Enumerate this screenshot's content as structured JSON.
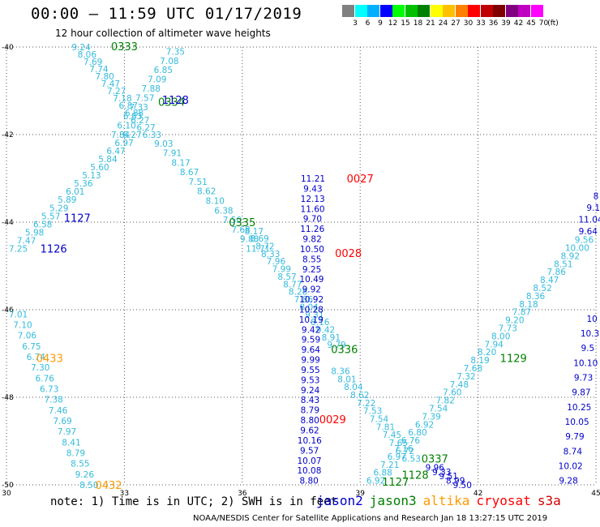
{
  "title": "00:00 – 11:59 UTC 01/17/2019",
  "subtitle": "12 hour collection of altimeter wave heights",
  "legend": {
    "unit": "(ft)",
    "bins": [
      {
        "color": "#808080",
        "label": "3"
      },
      {
        "color": "#00ffff",
        "label": "6"
      },
      {
        "color": "#00b0ff",
        "label": "9"
      },
      {
        "color": "#0000ff",
        "label": "12"
      },
      {
        "color": "#00ff00",
        "label": "15"
      },
      {
        "color": "#00c000",
        "label": "18"
      },
      {
        "color": "#008000",
        "label": "21"
      },
      {
        "color": "#ffff00",
        "label": "24"
      },
      {
        "color": "#ffc000",
        "label": "27"
      },
      {
        "color": "#ff8000",
        "label": "30"
      },
      {
        "color": "#ff0000",
        "label": "33"
      },
      {
        "color": "#c00000",
        "label": "36"
      },
      {
        "color": "#800000",
        "label": "39"
      },
      {
        "color": "#800080",
        "label": "42"
      },
      {
        "color": "#c000c0",
        "label": "45"
      },
      {
        "color": "#ff00ff",
        "label": "70"
      }
    ]
  },
  "axes": {
    "lon_ticks": [
      "30",
      "33",
      "36",
      "39",
      "42",
      "45"
    ],
    "lat_ticks": [
      "-40",
      "-42",
      "-44",
      "-46",
      "-48",
      "-50"
    ]
  },
  "colors": {
    "jason2": "#0000cc",
    "jason3": "#008000",
    "altika": "#ff9900",
    "cryosat": "#ff0000",
    "s3a": "#cc0000",
    "light": "#33bbdd",
    "grid": "#555555"
  },
  "tracks": [
    {
      "sat": "jason2",
      "color": "#33bbdd",
      "lon0": 31.9,
      "lat0": -40.0,
      "lon1": 33.7,
      "lat1": -42.0,
      "values": [
        "9.24",
        "8.06",
        "7.69",
        "7.74",
        "7.80",
        "7.47",
        "7.27",
        "7.18",
        "6.87",
        "6.88",
        "6.27",
        "6.27",
        "6.33"
      ]
    },
    {
      "sat": "jason2",
      "color": "#33bbdd",
      "lon0": 34.3,
      "lat0": -40.1,
      "lon1": 32.9,
      "lat1": -42.0,
      "values": [
        "7.35",
        "7.08",
        "6.85",
        "7.09",
        "7.88",
        "7.57",
        "7.33",
        "6.83",
        "6.10",
        "7.84"
      ]
    },
    {
      "sat": "jason2",
      "color": "#33bbdd",
      "lon0": 33.2,
      "lat0": -42.0,
      "lon1": 30.3,
      "lat1": -44.6,
      "values": [
        "6.27",
        "6.97",
        "6.47",
        "5.84",
        "5.60",
        "5.13",
        "5.36",
        "6.01",
        "5.89",
        "5.29",
        "5.57",
        "6.58",
        "5.98",
        "7.47",
        "7.25"
      ]
    },
    {
      "sat": "jason2",
      "color": "#33bbdd",
      "lon0": 34.0,
      "lat0": -42.2,
      "lon1": 36.4,
      "lat1": -44.6,
      "values": [
        "9.03",
        "7.91",
        "8.17",
        "8.67",
        "7.51",
        "8.62",
        "8.10",
        "6.38",
        "7.50",
        "7.68",
        "9.88",
        "11.71"
      ]
    },
    {
      "sat": "jason2",
      "color": "#33bbdd",
      "lon0": 36.3,
      "lat0": -44.2,
      "lon1": 38.4,
      "lat1": -46.8,
      "values": [
        "8.17",
        "8.69",
        "8.72",
        "8.33",
        "7.96",
        "7.99",
        "8.57",
        "8.77",
        "8.28",
        "7.86",
        "8.04",
        "9.31",
        "8.16",
        "9.42",
        "8.91",
        "9.79"
      ]
    },
    {
      "sat": "jason2",
      "color": "#33bbdd",
      "lon0": 38.5,
      "lat0": -47.4,
      "lon1": 40.3,
      "lat1": -49.4,
      "values": [
        "8.36",
        "8.01",
        "8.04",
        "8.62",
        "7.22",
        "7.53",
        "7.54",
        "7.81",
        "7.45",
        "7.65",
        "6.72",
        "6.53"
      ]
    },
    {
      "sat": "jason2",
      "color": "#0000cc",
      "lon0": 37.8,
      "lat0": -43.0,
      "lon1": 37.7,
      "lat1": -49.9,
      "values": [
        "11.21",
        "9.43",
        "12.13",
        "11.60",
        "9.70",
        "11.26",
        "9.82",
        "10.50",
        "8.55",
        "9.25",
        "10.49",
        "9.92",
        "10.92",
        "10.28",
        "10.19",
        "9.42",
        "9.59",
        "9.64",
        "9.99",
        "9.55",
        "9.53",
        "9.24",
        "8.43",
        "8.79",
        "8.80",
        "9.62",
        "10.16",
        "9.57",
        "10.07",
        "10.08",
        "8.80"
      ]
    },
    {
      "sat": "jason2",
      "color": "#33bbdd",
      "lon0": 30.3,
      "lat0": -46.1,
      "lon1": 32.1,
      "lat1": -50.0,
      "values": [
        "7.01",
        "7.10",
        "7.06",
        "6.75",
        "6.74",
        "7.30",
        "6.76",
        "6.73",
        "7.38",
        "7.46",
        "7.69",
        "7.97",
        "8.41",
        "8.79",
        "8.55",
        "9.26",
        "8.50"
      ]
    },
    {
      "sat": "jason2",
      "color": "#33bbdd",
      "lon0": 39.4,
      "lat0": -49.9,
      "lon1": 44.7,
      "lat1": -44.4,
      "values": [
        "6.92",
        "6.88",
        "7.21",
        "6.97",
        "7.16",
        "6.76",
        "6.80",
        "6.92",
        "7.39",
        "7.54",
        "7.82",
        "7.60",
        "7.48",
        "7.32",
        "7.68",
        "8.19",
        "8.20",
        "7.94",
        "8.00",
        "7.73",
        "9.20",
        "7.87",
        "8.18",
        "8.36",
        "8.52",
        "8.47",
        "7.86",
        "8.51",
        "8.92",
        "10.00",
        "9.56"
      ]
    },
    {
      "sat": "jason2",
      "color": "#0000cc",
      "lon0": 44.9,
      "lat0": -46.2,
      "lon1": 44.3,
      "lat1": -49.9,
      "values": [
        "10",
        "10.3",
        "9.5",
        "10.10",
        "9.73",
        "9.87",
        "10.25",
        "10.05",
        "9.79",
        "8.74",
        "10.02",
        "9.28"
      ]
    },
    {
      "sat": "jason2",
      "color": "#0000cc",
      "lon0": 40.9,
      "lat0": -49.6,
      "lon1": 41.6,
      "lat1": -50.0,
      "values": [
        "9.96",
        "9.33",
        "9.51",
        "8.99",
        "9.50"
      ]
    },
    {
      "sat": "jason2",
      "color": "#0000cc",
      "lon0": 45.0,
      "lat0": -43.4,
      "lon1": 44.8,
      "lat1": -44.2,
      "values": [
        "8",
        "9.1",
        "11.04",
        "9.64"
      ]
    }
  ],
  "passes": [
    {
      "text": "0333",
      "sat": "jason3",
      "lon": 33.0,
      "lat": -39.98
    },
    {
      "text": "0334",
      "sat": "jason3",
      "lon": 34.2,
      "lat": -41.25
    },
    {
      "text": "1128",
      "sat": "jason2",
      "lon": 34.3,
      "lat": -41.2
    },
    {
      "text": "1127",
      "sat": "jason2",
      "lon": 31.8,
      "lat": -43.9
    },
    {
      "text": "1126",
      "sat": "jason2",
      "lon": 31.2,
      "lat": -44.6
    },
    {
      "text": "0335",
      "sat": "jason3",
      "lon": 36.0,
      "lat": -44.0
    },
    {
      "text": "0027",
      "sat": "cryosat",
      "lon": 39.0,
      "lat": -43.0
    },
    {
      "text": "0028",
      "sat": "cryosat",
      "lon": 38.7,
      "lat": -44.7
    },
    {
      "text": "0336",
      "sat": "jason3",
      "lon": 38.6,
      "lat": -46.9
    },
    {
      "text": "0433",
      "sat": "altika",
      "lon": 31.1,
      "lat": -47.1
    },
    {
      "text": "1129",
      "sat": "jason3",
      "lon": 42.9,
      "lat": -47.1
    },
    {
      "text": "0029",
      "sat": "cryosat",
      "lon": 38.3,
      "lat": -48.5
    },
    {
      "text": "0337",
      "sat": "jason3",
      "lon": 40.9,
      "lat": -49.4
    },
    {
      "text": "1128",
      "sat": "jason3",
      "lon": 40.4,
      "lat": -49.77
    },
    {
      "text": "1127",
      "sat": "jason3",
      "lon": 39.9,
      "lat": -49.93
    },
    {
      "text": "0432",
      "sat": "altika",
      "lon": 32.6,
      "lat": -50.0
    }
  ],
  "note": "note: 1) Time is in UTC; 2) SWH is in feet",
  "missions": [
    {
      "name": "jason2",
      "sat": "jason2"
    },
    {
      "name": "jason3",
      "sat": "jason3"
    },
    {
      "name": "altika",
      "sat": "altika"
    },
    {
      "name": "cryosat",
      "sat": "cryosat"
    },
    {
      "name": "s3a",
      "sat": "s3a"
    }
  ],
  "credit": "NOAA/NESDIS Center for Satellite Applications and Research   Jan 18 13:27:15 UTC 2019"
}
